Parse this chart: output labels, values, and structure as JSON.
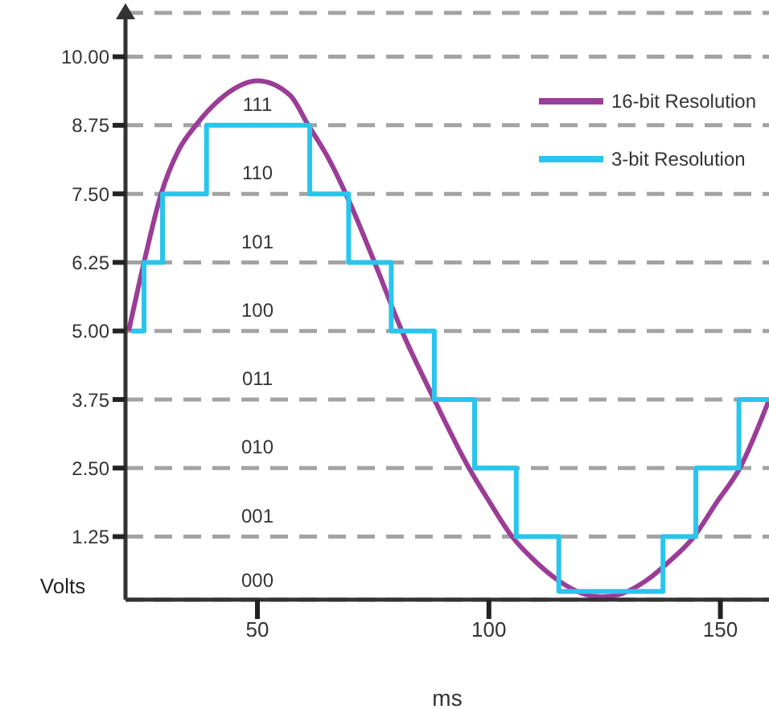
{
  "chart_data": {
    "type": "line",
    "xlabel": "ms",
    "ylabel": "Volts",
    "xlim": [
      21.5,
      160.5
    ],
    "ylim": [
      0.1,
      10.8
    ],
    "xticks": [
      50,
      100,
      150
    ],
    "yticks": [
      {
        "value": 1.25,
        "label": "1.25"
      },
      {
        "value": 2.5,
        "label": "2.50"
      },
      {
        "value": 3.75,
        "label": "3.75"
      },
      {
        "value": 5,
        "label": "5.00"
      },
      {
        "value": 6.25,
        "label": "6.25"
      },
      {
        "value": 7.5,
        "label": "7.50"
      },
      {
        "value": 8.75,
        "label": "8.75"
      },
      {
        "value": 10,
        "label": "10.00"
      }
    ],
    "grid": "y",
    "legend": "top right",
    "series": [
      {
        "name": "16-bit Resolution",
        "color": "#9b3d96",
        "type": "line",
        "x": [
          22.2,
          25.5,
          29.2,
          33,
          36.7,
          43,
          50,
          57,
          61,
          65,
          69.1,
          75.3,
          81.2,
          88.2,
          95.7,
          100,
          105,
          110,
          115,
          120,
          124.6,
          129,
          134,
          139,
          144.3,
          149,
          154.2,
          160.4
        ],
        "values": [
          5,
          6.25,
          7.5,
          8.3,
          8.75,
          9.3,
          9.56,
          9.3,
          8.75,
          8.2,
          7.5,
          6.25,
          5,
          3.75,
          2.5,
          1.9,
          1.25,
          0.8,
          0.45,
          0.22,
          0.15,
          0.22,
          0.45,
          0.8,
          1.25,
          1.85,
          2.5,
          3.72
        ]
      },
      {
        "name": "3-bit Resolution",
        "color": "#29c5ec",
        "type": "step",
        "x": [
          22.8,
          25.5,
          29.5,
          39,
          61.3,
          69.7,
          78.9,
          88.2,
          96.9,
          105.9,
          115.1,
          137.6,
          144.7,
          154,
          160.5
        ],
        "values": [
          5,
          6.25,
          7.5,
          8.75,
          7.5,
          6.25,
          5,
          3.75,
          2.5,
          1.25,
          0.25,
          1.25,
          2.5,
          3.75,
          3.75
        ]
      }
    ],
    "annotations": [
      "111",
      "110",
      "101",
      "100",
      "011",
      "010",
      "001",
      "000"
    ]
  }
}
